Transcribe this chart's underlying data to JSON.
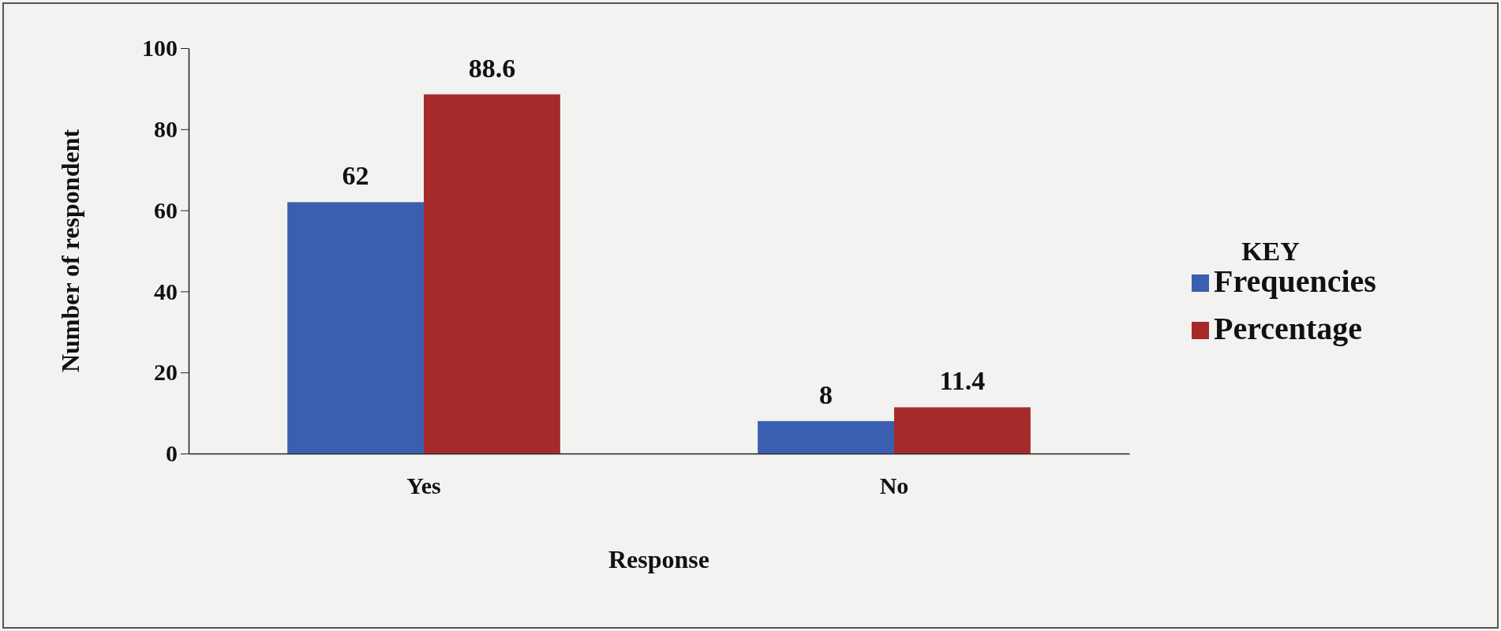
{
  "chart_data": {
    "type": "bar",
    "xlabel": "Response",
    "ylabel": "Number of respondent",
    "legend_title": "KEY",
    "legend": "right",
    "categories": [
      "Yes",
      "No"
    ],
    "series": [
      {
        "name": "Frequencies",
        "color": "#3b5fb0",
        "values": [
          62,
          8
        ]
      },
      {
        "name": "Percentage",
        "color": "#a52a2a",
        "values": [
          88.6,
          11.4
        ]
      }
    ],
    "ylim": [
      0,
      100
    ],
    "yticks": [
      0,
      20,
      40,
      60,
      80,
      100
    ],
    "data_labels": true,
    "grid": false
  }
}
